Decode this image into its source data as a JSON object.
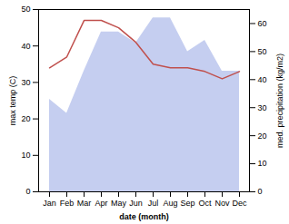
{
  "chart_data": {
    "type": "line",
    "categories": [
      "Jan",
      "Feb",
      "Mar",
      "Apr",
      "May",
      "Jun",
      "Jul",
      "Aug",
      "Sep",
      "Oct",
      "Nov",
      "Dec"
    ],
    "xlabel": "date (month)",
    "ylabel": "max temp (C)",
    "y2label": "med. precipitation (kg/m2)",
    "ylim": [
      0,
      50
    ],
    "yticks": [
      0,
      10,
      20,
      30,
      40,
      50
    ],
    "y2lim": [
      0,
      65
    ],
    "y2ticks": [
      0,
      10,
      20,
      30,
      40,
      50,
      60
    ],
    "series": [
      {
        "type": "area",
        "axis": "y2",
        "color": "#c5cef0",
        "values": [
          33,
          28,
          43,
          57,
          57,
          53,
          62,
          62,
          50,
          54,
          43,
          43
        ]
      },
      {
        "type": "line",
        "color": "#c0504d",
        "values": [
          34,
          37,
          47,
          47,
          45,
          41,
          35,
          34,
          34,
          33,
          31,
          33
        ]
      }
    ]
  }
}
